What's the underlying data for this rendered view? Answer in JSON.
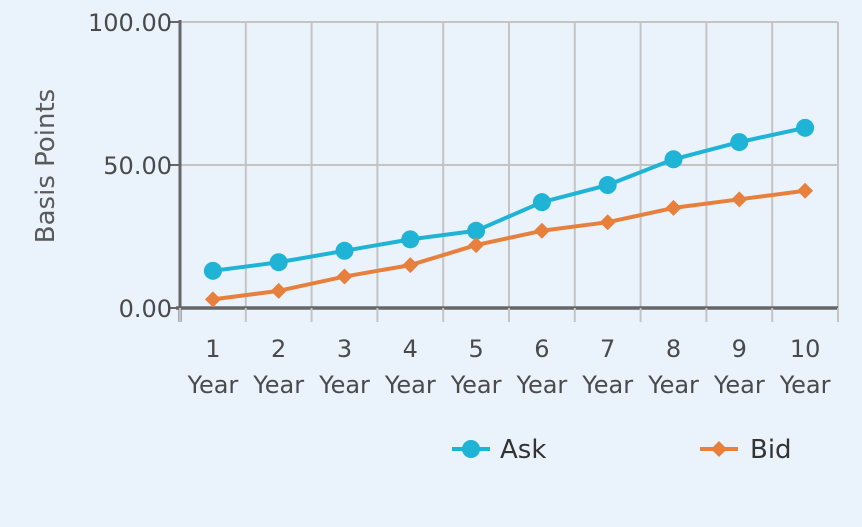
{
  "chart_data": {
    "type": "line",
    "title": "",
    "xlabel": "",
    "ylabel": "Basis Points",
    "categories": [
      [
        "1",
        "Year"
      ],
      [
        "2",
        "Year"
      ],
      [
        "3",
        "Year"
      ],
      [
        "4",
        "Year"
      ],
      [
        "5",
        "Year"
      ],
      [
        "6",
        "Year"
      ],
      [
        "7",
        "Year"
      ],
      [
        "8",
        "Year"
      ],
      [
        "9",
        "Year"
      ],
      [
        "10",
        "Year"
      ]
    ],
    "yticks": [
      "0.00",
      "50.00",
      "100.00"
    ],
    "ylim": [
      0,
      100
    ],
    "grid": true,
    "legend": "bottom-right",
    "series": [
      {
        "name": "Ask",
        "color": "#1fb3d6",
        "marker": "circle",
        "values": [
          13,
          16,
          20,
          24,
          27,
          37,
          43,
          52,
          58,
          63
        ]
      },
      {
        "name": "Bid",
        "color": "#e8803d",
        "marker": "diamond",
        "values": [
          3,
          6,
          11,
          15,
          22,
          27,
          30,
          35,
          38,
          41
        ]
      }
    ]
  }
}
